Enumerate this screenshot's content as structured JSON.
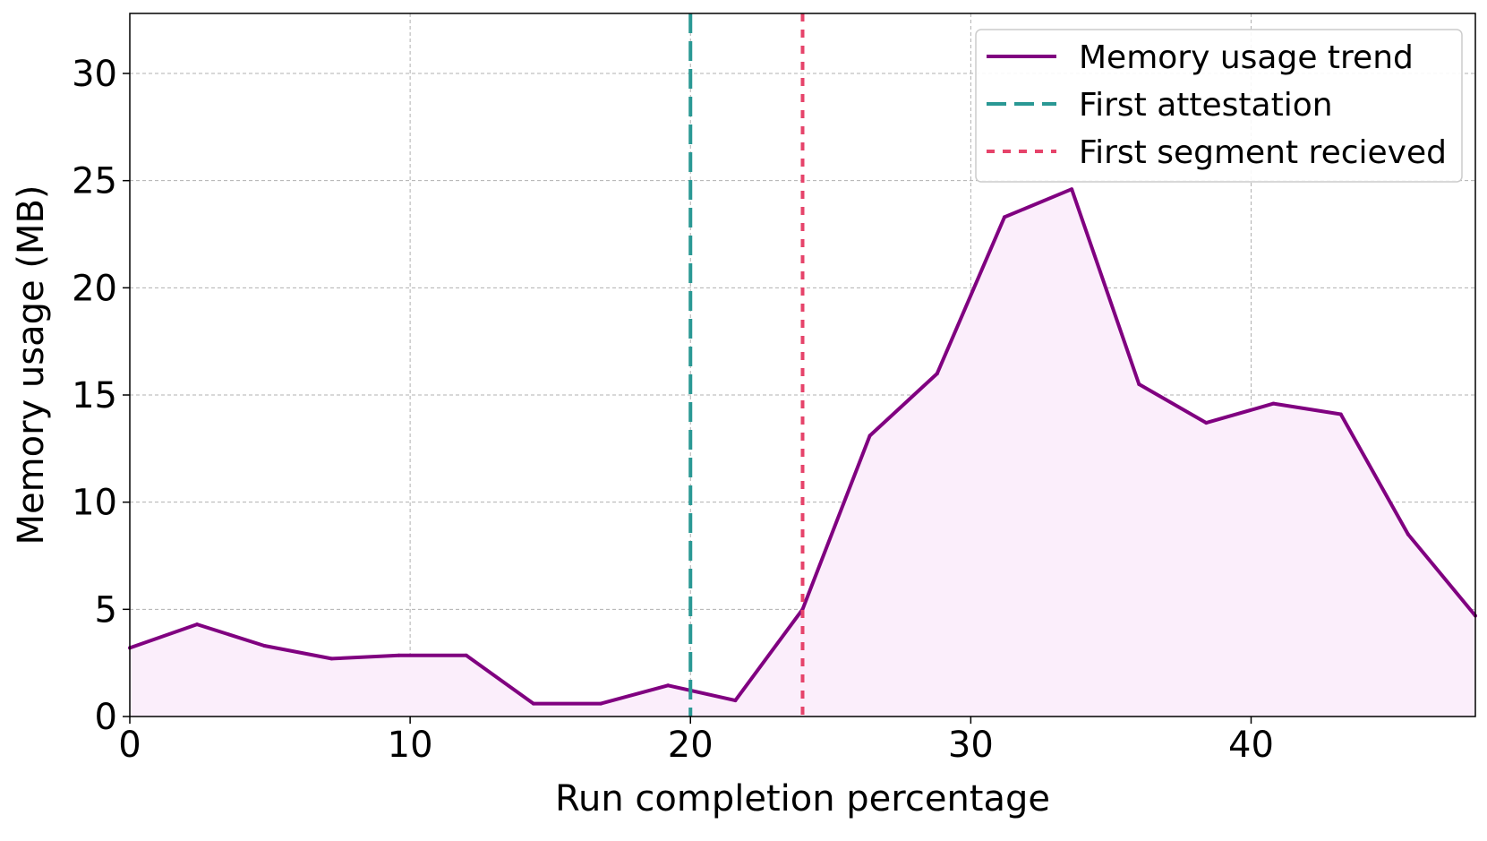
{
  "chart_data": {
    "type": "line",
    "title": "",
    "xlabel": "Run completion percentage",
    "ylabel": "Memory usage (MB)",
    "xlim": [
      0,
      48
    ],
    "ylim": [
      0,
      32.8
    ],
    "xticks": [
      0,
      10,
      20,
      30,
      40
    ],
    "yticks": [
      0,
      5,
      10,
      15,
      20,
      25,
      30
    ],
    "grid": true,
    "legend_position": "top-right",
    "series": [
      {
        "name": "Memory usage trend",
        "color": "#800080",
        "fill_color": "#fbeefb",
        "style": "solid",
        "x": [
          0,
          2.4,
          4.8,
          7.2,
          9.6,
          12.0,
          14.4,
          16.8,
          19.2,
          21.6,
          24.0,
          26.4,
          28.8,
          31.2,
          33.6,
          36.0,
          38.4,
          40.8,
          43.2,
          45.6,
          48.0
        ],
        "y": [
          3.2,
          4.3,
          3.3,
          2.7,
          2.85,
          2.85,
          0.6,
          0.6,
          1.45,
          0.75,
          5.0,
          13.1,
          16.0,
          23.3,
          24.6,
          15.5,
          13.7,
          14.6,
          14.1,
          8.5,
          4.7
        ]
      }
    ],
    "vlines": [
      {
        "name": "First attestation",
        "x": 20.0,
        "color": "#2a9894",
        "style": "dashed"
      },
      {
        "name": "First segment recieved",
        "x": 24.0,
        "color": "#e6436a",
        "style": "dotted"
      }
    ]
  }
}
